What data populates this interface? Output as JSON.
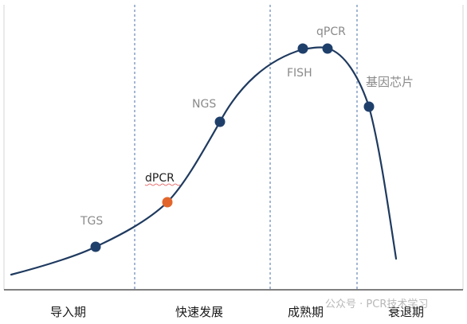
{
  "phases": [
    "导入期",
    "快速发展",
    "成熟期",
    "衰退期"
  ],
  "technologies": {
    "tgs": "TGS",
    "dpcr": "dPCR",
    "ngs": "NGS",
    "fish": "FISH",
    "qpcr": "qPCR",
    "chip": "基因芯片"
  },
  "watermark": "公众号 · PCR技术学习",
  "colors": {
    "curve": "#1f3a5f",
    "point": "#1f3f6b",
    "highlight": "#e2662b",
    "divider": "#4a6fa5",
    "axis": "#333333",
    "frame": "#cfcfcf"
  }
}
